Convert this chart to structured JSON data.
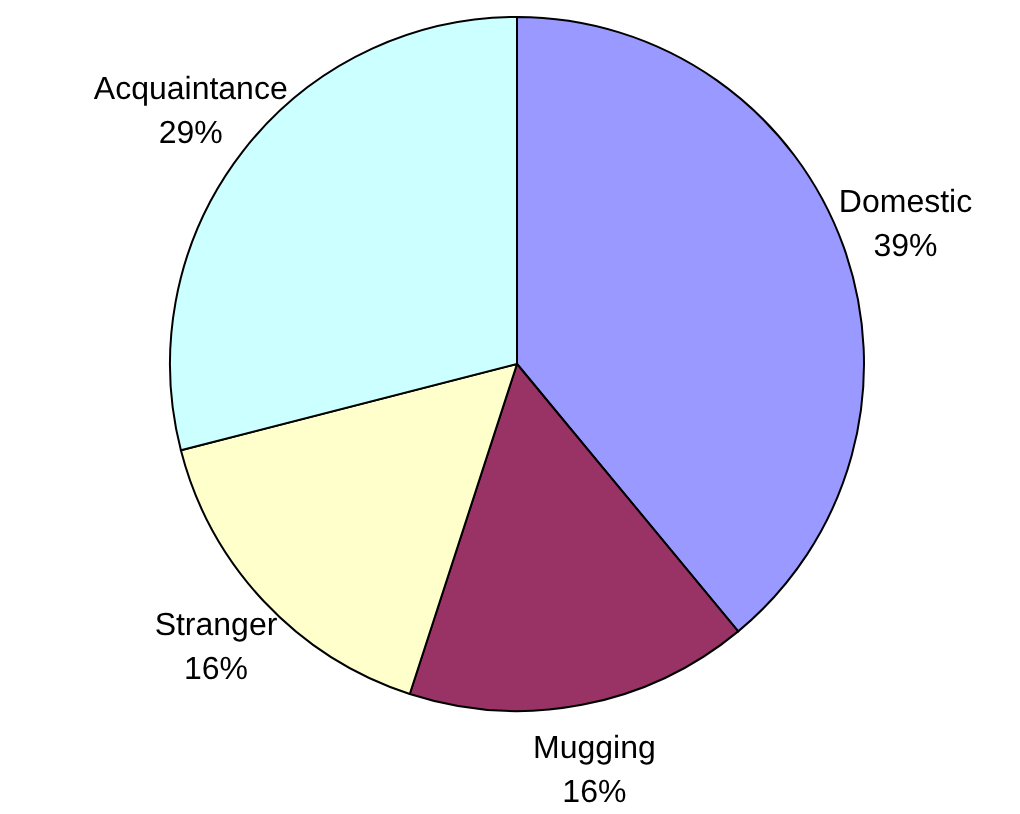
{
  "chart_data": {
    "type": "pie",
    "categories": [
      "Domestic",
      "Mugging",
      "Stranger",
      "Acquaintance"
    ],
    "values": [
      39,
      16,
      16,
      29
    ],
    "colors": [
      "#9999ff",
      "#993366",
      "#ffffcc",
      "#ccffff"
    ],
    "value_labels": [
      "39%",
      "16%",
      "16%",
      "29%"
    ]
  }
}
